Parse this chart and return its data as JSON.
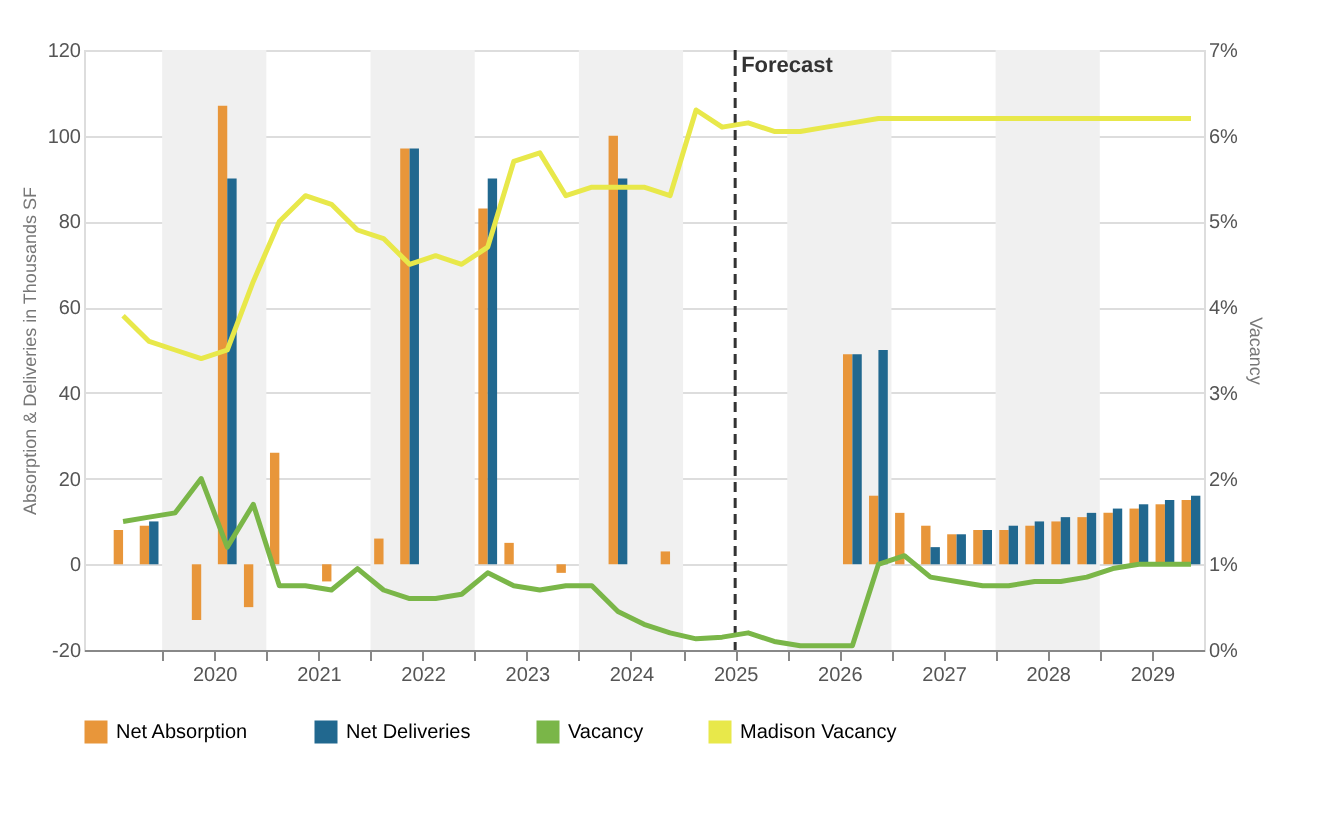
{
  "chart_data": {
    "type": "bar",
    "ylabel": "Absorption & Deliveries in Thousands SF",
    "y2label": "Vacancy",
    "x": [
      2019.625,
      2019.875,
      2020.125,
      2020.375,
      2020.625,
      2020.875,
      2021.125,
      2021.375,
      2021.625,
      2021.875,
      2022.125,
      2022.375,
      2022.625,
      2022.875,
      2023.125,
      2023.375,
      2023.625,
      2023.875,
      2024.125,
      2024.375,
      2024.625,
      2024.875,
      2025.125,
      2025.375,
      2025.625,
      2025.875,
      2026.125,
      2026.375,
      2026.625,
      2026.875,
      2027.125,
      2027.375,
      2027.625,
      2027.875,
      2028.125,
      2028.375,
      2028.625,
      2028.875,
      2029.125,
      2029.375,
      2029.625,
      2029.875
    ],
    "series": [
      {
        "name": "Net Absorption",
        "color": "#e8963a",
        "values": [
          8,
          9,
          null,
          -13,
          107,
          -10,
          26,
          null,
          -4,
          null,
          6,
          97,
          null,
          null,
          83,
          5,
          null,
          -2,
          null,
          100,
          null,
          3,
          null,
          null,
          null,
          null,
          null,
          null,
          49,
          16,
          12,
          9,
          7,
          8,
          8,
          9,
          10,
          11,
          12,
          13,
          14,
          15
        ]
      },
      {
        "name": "Net Deliveries",
        "color": "#21688f",
        "values": [
          null,
          10,
          null,
          null,
          90,
          null,
          null,
          null,
          null,
          null,
          null,
          97,
          null,
          null,
          90,
          null,
          null,
          null,
          null,
          90,
          null,
          null,
          null,
          null,
          null,
          null,
          null,
          null,
          49,
          50,
          null,
          4,
          7,
          8,
          9,
          10,
          11,
          12,
          13,
          14,
          15,
          16
        ]
      },
      {
        "name": "Vacancy",
        "type": "line",
        "axis": "y2",
        "color": "#7ab648",
        "values": [
          1.5,
          1.55,
          1.6,
          2.0,
          1.2,
          1.7,
          0.75,
          0.75,
          0.7,
          0.95,
          0.7,
          0.6,
          0.6,
          0.65,
          0.9,
          0.75,
          0.7,
          0.75,
          0.75,
          0.45,
          0.3,
          0.2,
          0.13,
          0.15,
          0.2,
          0.1,
          0.05,
          0.05,
          0.05,
          1.0,
          1.1,
          0.85,
          0.8,
          0.75,
          0.75,
          0.8,
          0.8,
          0.85,
          0.95,
          1.0,
          1.0,
          1.0
        ]
      },
      {
        "name": "Madison Vacancy",
        "type": "line",
        "axis": "y2",
        "color": "#e8e84a",
        "values": [
          3.9,
          3.6,
          3.5,
          3.4,
          3.5,
          4.3,
          5.0,
          5.3,
          5.2,
          4.9,
          4.8,
          4.5,
          4.6,
          4.5,
          4.7,
          5.7,
          5.8,
          5.3,
          5.4,
          5.4,
          5.4,
          5.3,
          6.3,
          6.1,
          6.15,
          6.05,
          6.05,
          6.1,
          6.15,
          6.2,
          6.2,
          6.2,
          6.2,
          6.2,
          6.2,
          6.2,
          6.2,
          6.2,
          6.2,
          6.2,
          6.2,
          6.2
        ]
      }
    ],
    "xlim": [
      2019.25,
      2030
    ],
    "xticks": [
      {
        "value": 2020,
        "label": null
      },
      {
        "value": 2020.5,
        "label": "2020"
      },
      {
        "value": 2021,
        "label": null
      },
      {
        "value": 2021.5,
        "label": "2021"
      },
      {
        "value": 2022,
        "label": null
      },
      {
        "value": 2022.5,
        "label": "2022"
      },
      {
        "value": 2023,
        "label": null
      },
      {
        "value": 2023.5,
        "label": "2023"
      },
      {
        "value": 2024,
        "label": null
      },
      {
        "value": 2024.5,
        "label": "2024"
      },
      {
        "value": 2025,
        "label": null
      },
      {
        "value": 2025.5,
        "label": "2025"
      },
      {
        "value": 2026,
        "label": null
      },
      {
        "value": 2026.5,
        "label": "2026"
      },
      {
        "value": 2027,
        "label": null
      },
      {
        "value": 2027.5,
        "label": "2027"
      },
      {
        "value": 2028,
        "label": null
      },
      {
        "value": 2028.5,
        "label": "2028"
      },
      {
        "value": 2029,
        "label": null
      },
      {
        "value": 2029.5,
        "label": "2029"
      }
    ],
    "ylim": [
      -20,
      120
    ],
    "yticks": [
      -20,
      0,
      20,
      40,
      60,
      80,
      100,
      120
    ],
    "y2lim": [
      0,
      7
    ],
    "y2ticks": [
      {
        "value": 0,
        "label": "0%"
      },
      {
        "value": 1,
        "label": "1%"
      },
      {
        "value": 2,
        "label": "2%"
      },
      {
        "value": 3,
        "label": "3%"
      },
      {
        "value": 4,
        "label": "4%"
      },
      {
        "value": 5,
        "label": "5%"
      },
      {
        "value": 6,
        "label": "6%"
      },
      {
        "value": 7,
        "label": "7%"
      }
    ],
    "ref_lines": [
      {
        "axis": "x",
        "value": 2025.5,
        "label": "Forecast",
        "color": "#333333",
        "line_style": "dashed"
      }
    ],
    "bands": [
      {
        "axis": "x",
        "from": 2020,
        "to": 2021,
        "color": "#f0f0f0"
      },
      {
        "axis": "x",
        "from": 2022,
        "to": 2023,
        "color": "#f0f0f0"
      },
      {
        "axis": "x",
        "from": 2024,
        "to": 2025,
        "color": "#f0f0f0"
      },
      {
        "axis": "x",
        "from": 2026,
        "to": 2027,
        "color": "#f0f0f0"
      },
      {
        "axis": "x",
        "from": 2028,
        "to": 2029,
        "color": "#f0f0f0"
      }
    ],
    "grid": "y",
    "legend": "bottom"
  }
}
